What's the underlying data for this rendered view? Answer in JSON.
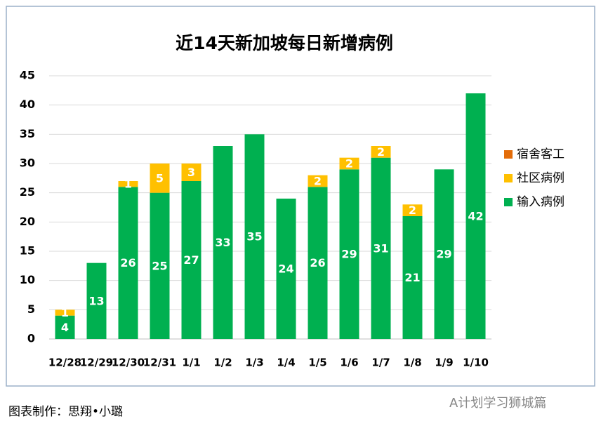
{
  "chart_data": {
    "type": "bar",
    "stacked": true,
    "title": "近14天新加坡每日新增病例",
    "categories": [
      "12/28",
      "12/29",
      "12/30",
      "12/31",
      "1/1",
      "1/2",
      "1/3",
      "1/4",
      "1/5",
      "1/6",
      "1/7",
      "1/8",
      "1/9",
      "1/10"
    ],
    "series": [
      {
        "name": "输入病例",
        "color": "#00b050",
        "values": [
          4,
          13,
          26,
          25,
          27,
          33,
          35,
          24,
          26,
          29,
          31,
          21,
          29,
          42
        ]
      },
      {
        "name": "社区病例",
        "color": "#ffc000",
        "values": [
          1,
          0,
          1,
          5,
          3,
          0,
          0,
          0,
          2,
          2,
          2,
          2,
          0,
          0
        ]
      },
      {
        "name": "宿舍客工",
        "color": "#e36c09",
        "values": [
          0,
          0,
          0,
          0,
          0,
          0,
          0,
          0,
          0,
          0,
          0,
          0,
          0,
          0
        ]
      }
    ],
    "ylim": [
      0,
      45
    ],
    "yticks": [
      0,
      5,
      10,
      15,
      20,
      25,
      30,
      35,
      40,
      45
    ],
    "grid": true,
    "legend": "right"
  },
  "footer": "图表制作：思翔•小璐",
  "watermark": "A计划学习狮城篇"
}
